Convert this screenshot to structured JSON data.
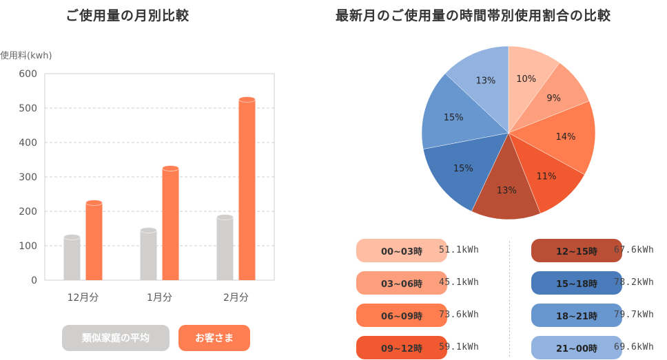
{
  "chart_data": [
    {
      "type": "bar",
      "title": "ご使用量の月別比較",
      "ylabel": "使用料(kwh)",
      "ylim": [
        0,
        600
      ],
      "yticks": [
        0,
        100,
        200,
        300,
        400,
        500,
        600
      ],
      "categories": [
        "12月分",
        "1月分",
        "2月分"
      ],
      "grid": true,
      "series": [
        {
          "name": "類似家庭の平均",
          "color": "#d0cfcd",
          "values": [
            125,
            145,
            183
          ]
        },
        {
          "name": "お客さま",
          "color": "#ff7f52",
          "values": [
            225,
            325,
            525
          ]
        }
      ]
    },
    {
      "type": "pie",
      "title": "最新月のご使用量の時間帯別使用割合の比較",
      "slices": [
        {
          "label": "00~03時",
          "percent": 10,
          "value": "51.1kWh",
          "color": "#ffbda3",
          "text_color": "#333333"
        },
        {
          "label": "03~06時",
          "percent": 9,
          "value": "45.1kWh",
          "color": "#fd9f7c",
          "text_color": "#333333"
        },
        {
          "label": "06~09時",
          "percent": 14,
          "value": "73.6kWh",
          "color": "#ff7d4f",
          "text_color": "#333333"
        },
        {
          "label": "09~12時",
          "percent": 11,
          "value": "59.1kWh",
          "color": "#f15a30",
          "text_color": "#333333"
        },
        {
          "label": "12~15時",
          "percent": 13,
          "value": "67.6kWh",
          "color": "#bb4f35",
          "text_color": "#222222"
        },
        {
          "label": "15~18時",
          "percent": 15,
          "value": "78.2kWh",
          "color": "#4a7cbb",
          "text_color": "#222222"
        },
        {
          "label": "18~21時",
          "percent": 15,
          "value": "79.7kWh",
          "color": "#6897cf",
          "text_color": "#222222"
        },
        {
          "label": "21~00時",
          "percent": 13,
          "value": "69.6kWh",
          "color": "#92b3e0",
          "text_color": "#222222"
        }
      ]
    }
  ]
}
